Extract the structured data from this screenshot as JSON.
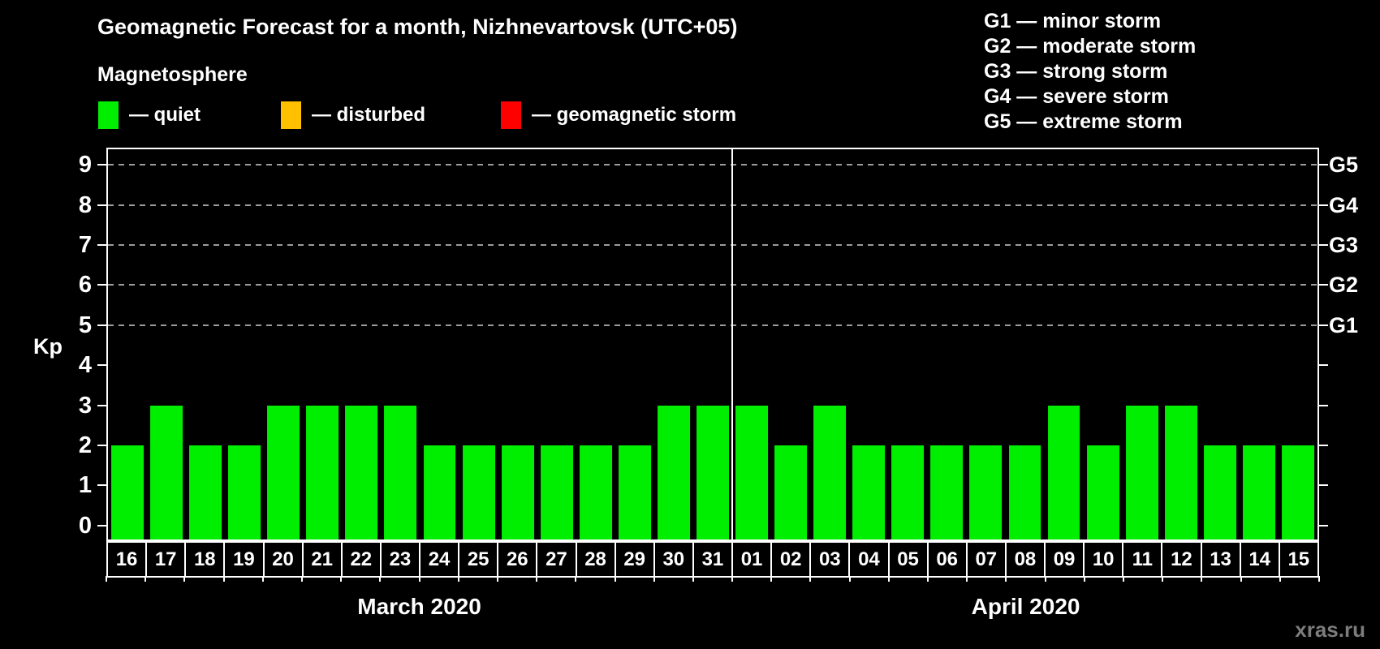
{
  "title": "Geomagnetic Forecast for a month, Nizhnevartovsk (UTC+05)",
  "subtitle": "Magnetosphere",
  "legend": {
    "items": [
      {
        "name": "quiet",
        "label": "— quiet",
        "color": "#00ee00"
      },
      {
        "name": "disturbed",
        "label": "— disturbed",
        "color": "#ffc000"
      },
      {
        "name": "geomagnetic-storm",
        "label": "— geomagnetic storm",
        "color": "#ff0000"
      }
    ]
  },
  "storm_scale_legend": [
    "G1 — minor storm",
    "G2 — moderate storm",
    "G3 — strong storm",
    "G4 — severe storm",
    "G5 — extreme storm"
  ],
  "watermark": "xras.ru",
  "chart_data": {
    "type": "bar",
    "title": "Geomagnetic Forecast for a month, Nizhnevartovsk (UTC+05)",
    "ylabel": "Kp",
    "ylim": [
      0,
      9
    ],
    "yticks": [
      0,
      1,
      2,
      3,
      4,
      5,
      6,
      7,
      8,
      9
    ],
    "storm_level_gridlines_kp": [
      5,
      6,
      7,
      8,
      9
    ],
    "right_axis": [
      {
        "kp": 5,
        "label": "G1"
      },
      {
        "kp": 6,
        "label": "G2"
      },
      {
        "kp": 7,
        "label": "G3"
      },
      {
        "kp": 8,
        "label": "G4"
      },
      {
        "kp": 9,
        "label": "G5"
      }
    ],
    "bar_color": "#00ee00",
    "bar_color_meaning": "quiet",
    "months": [
      {
        "label": "March 2020",
        "days": [
          "16",
          "17",
          "18",
          "19",
          "20",
          "21",
          "22",
          "23",
          "24",
          "25",
          "26",
          "27",
          "28",
          "29",
          "30",
          "31"
        ],
        "values": [
          2,
          3,
          2,
          2,
          3,
          3,
          3,
          3,
          2,
          2,
          2,
          2,
          2,
          2,
          3,
          3
        ]
      },
      {
        "label": "April 2020",
        "days": [
          "01",
          "02",
          "03",
          "04",
          "05",
          "06",
          "07",
          "08",
          "09",
          "10",
          "11",
          "12",
          "13",
          "14",
          "15"
        ],
        "values": [
          3,
          2,
          3,
          2,
          2,
          2,
          2,
          2,
          3,
          2,
          3,
          3,
          2,
          2,
          2
        ]
      }
    ]
  }
}
